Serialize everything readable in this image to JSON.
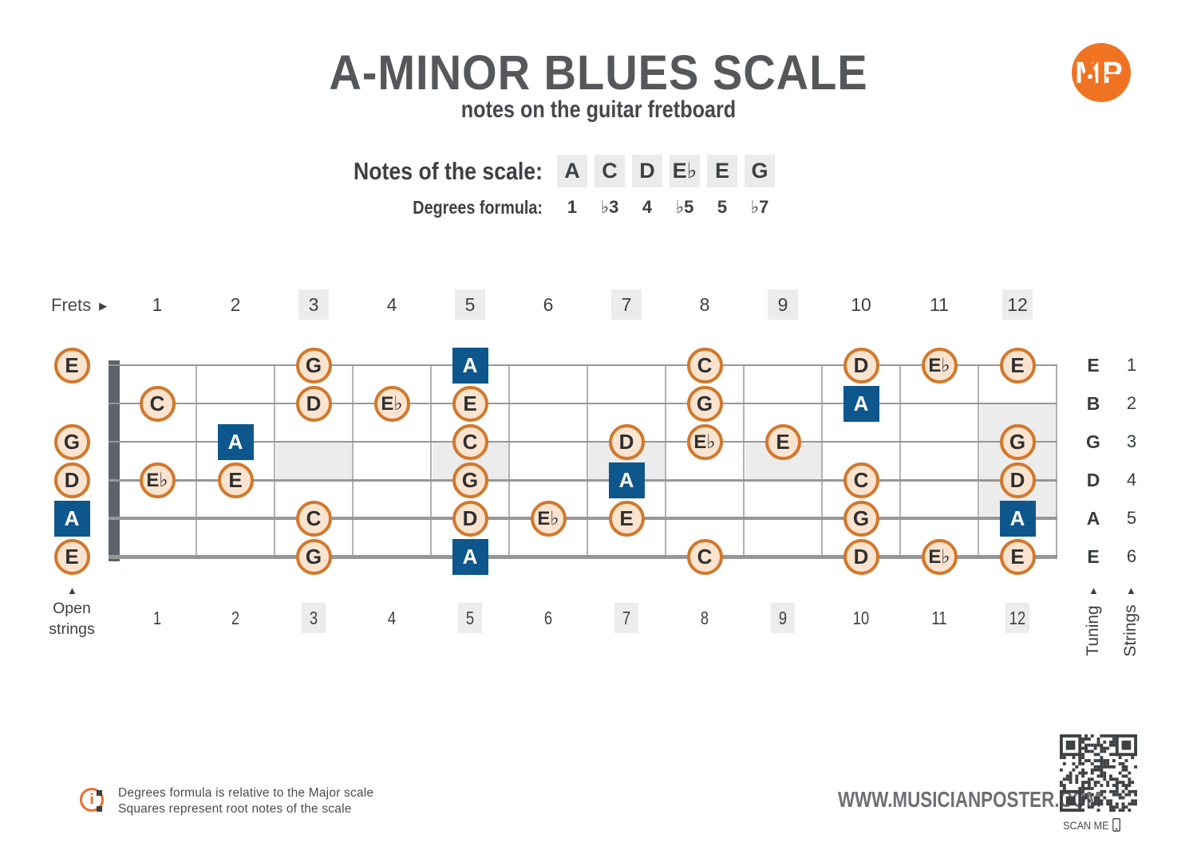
{
  "header": {
    "title": "A-MINOR BLUES SCALE",
    "subtitle": "notes on the guitar fretboard",
    "logo_text": "MP"
  },
  "scale": {
    "notes_label": "Notes of the scale:",
    "notes": [
      "A",
      "C",
      "D",
      "E♭",
      "E",
      "G"
    ],
    "degrees_label": "Degrees formula:",
    "degrees": [
      "1",
      "♭3",
      "4",
      "♭5",
      "5",
      "♭7"
    ]
  },
  "fretboard": {
    "frets_label": "Frets",
    "fret_numbers": [
      "1",
      "2",
      "3",
      "4",
      "5",
      "6",
      "7",
      "8",
      "9",
      "10",
      "11",
      "12"
    ],
    "marked_frets": [
      3,
      5,
      7,
      9,
      12
    ],
    "open_strings_label": "Open strings",
    "tuning_label": "Tuning",
    "strings_label": "Strings",
    "markers": [
      {
        "fret": 3,
        "top_string": 3,
        "bottom_string": 4
      },
      {
        "fret": 5,
        "top_string": 3,
        "bottom_string": 4
      },
      {
        "fret": 7,
        "top_string": 3,
        "bottom_string": 4
      },
      {
        "fret": 9,
        "top_string": 3,
        "bottom_string": 4
      },
      {
        "fret": 12,
        "top_string": 2,
        "bottom_string": 5
      }
    ],
    "strings": [
      {
        "number": "1",
        "tuning": "E",
        "open": {
          "note": "E",
          "root": false
        },
        "frets": [
          {
            "fret": 3,
            "note": "G",
            "root": false
          },
          {
            "fret": 5,
            "note": "A",
            "root": true
          },
          {
            "fret": 8,
            "note": "C",
            "root": false
          },
          {
            "fret": 10,
            "note": "D",
            "root": false
          },
          {
            "fret": 11,
            "note": "E♭",
            "root": false
          },
          {
            "fret": 12,
            "note": "E",
            "root": false
          }
        ]
      },
      {
        "number": "2",
        "tuning": "B",
        "open": null,
        "frets": [
          {
            "fret": 1,
            "note": "C",
            "root": false
          },
          {
            "fret": 3,
            "note": "D",
            "root": false
          },
          {
            "fret": 4,
            "note": "E♭",
            "root": false
          },
          {
            "fret": 5,
            "note": "E",
            "root": false
          },
          {
            "fret": 8,
            "note": "G",
            "root": false
          },
          {
            "fret": 10,
            "note": "A",
            "root": true
          }
        ]
      },
      {
        "number": "3",
        "tuning": "G",
        "open": {
          "note": "G",
          "root": false
        },
        "frets": [
          {
            "fret": 2,
            "note": "A",
            "root": true
          },
          {
            "fret": 5,
            "note": "C",
            "root": false
          },
          {
            "fret": 7,
            "note": "D",
            "root": false
          },
          {
            "fret": 8,
            "note": "E♭",
            "root": false
          },
          {
            "fret": 9,
            "note": "E",
            "root": false
          },
          {
            "fret": 12,
            "note": "G",
            "root": false
          }
        ]
      },
      {
        "number": "4",
        "tuning": "D",
        "open": {
          "note": "D",
          "root": false
        },
        "frets": [
          {
            "fret": 1,
            "note": "E♭",
            "root": false
          },
          {
            "fret": 2,
            "note": "E",
            "root": false
          },
          {
            "fret": 5,
            "note": "G",
            "root": false
          },
          {
            "fret": 7,
            "note": "A",
            "root": true
          },
          {
            "fret": 10,
            "note": "C",
            "root": false
          },
          {
            "fret": 12,
            "note": "D",
            "root": false
          }
        ]
      },
      {
        "number": "5",
        "tuning": "A",
        "open": {
          "note": "A",
          "root": true
        },
        "frets": [
          {
            "fret": 3,
            "note": "C",
            "root": false
          },
          {
            "fret": 5,
            "note": "D",
            "root": false
          },
          {
            "fret": 6,
            "note": "E♭",
            "root": false
          },
          {
            "fret": 7,
            "note": "E",
            "root": false
          },
          {
            "fret": 10,
            "note": "G",
            "root": false
          },
          {
            "fret": 12,
            "note": "A",
            "root": true
          }
        ]
      },
      {
        "number": "6",
        "tuning": "E",
        "open": {
          "note": "E",
          "root": false
        },
        "frets": [
          {
            "fret": 3,
            "note": "G",
            "root": false
          },
          {
            "fret": 5,
            "note": "A",
            "root": true
          },
          {
            "fret": 8,
            "note": "C",
            "root": false
          },
          {
            "fret": 10,
            "note": "D",
            "root": false
          },
          {
            "fret": 11,
            "note": "E♭",
            "root": false
          },
          {
            "fret": 12,
            "note": "E",
            "root": false
          }
        ]
      }
    ]
  },
  "footer": {
    "info_bullets": [
      "Degrees formula is relative to the Major scale",
      "Squares represent root notes of the scale"
    ],
    "website": "WWW.MUSICIANPOSTER.COM",
    "scan_label": "SCAN ME"
  },
  "colors": {
    "accent_orange": "#e8702b",
    "note_border_orange": "#d2782c",
    "note_fill_peach": "#fae4cf",
    "root_blue": "#0e578c",
    "marker_gray": "#ececec",
    "title_gray": "#56575a",
    "text_dark": "#3f4042"
  }
}
